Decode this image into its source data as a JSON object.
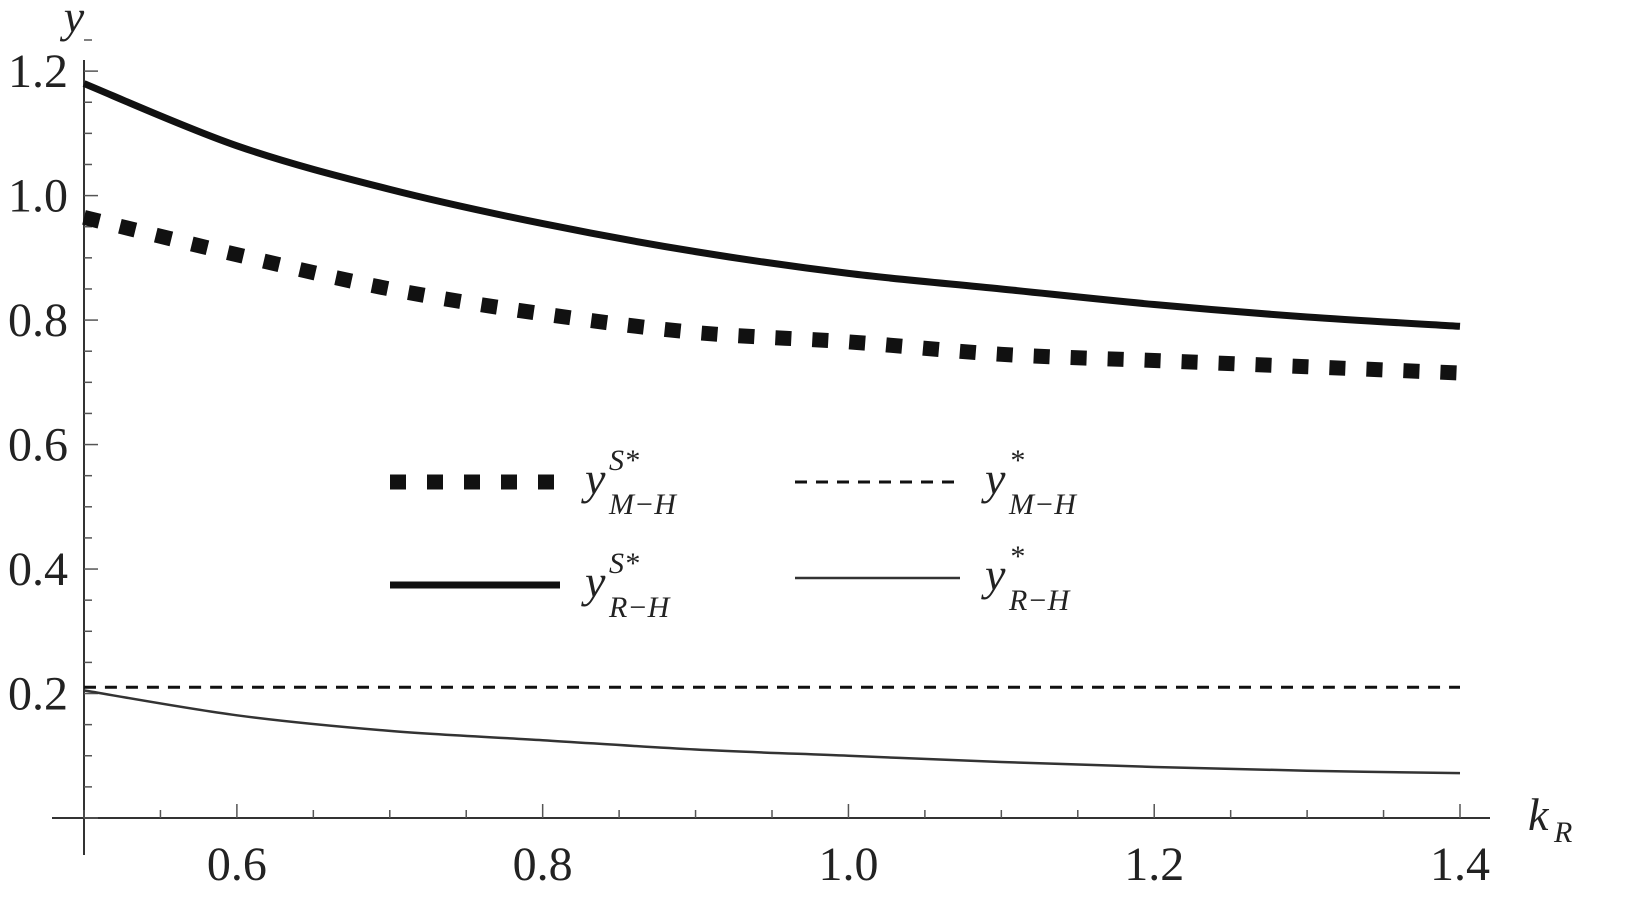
{
  "chart_data": {
    "type": "line",
    "xlabel": "k",
    "xlabel_sub": "R",
    "ylabel": "y",
    "xlim": [
      0.5,
      1.4
    ],
    "ylim": [
      0.0,
      1.25
    ],
    "xticks": [
      "0.6",
      "0.8",
      "1.0",
      "1.2",
      "1.4"
    ],
    "yticks": [
      "0.2",
      "0.4",
      "0.6",
      "0.8",
      "1.0",
      "1.2"
    ],
    "grid": false,
    "legend_position": "center",
    "x": [
      0.5,
      0.6,
      0.7,
      0.8,
      0.9,
      1.0,
      1.1,
      1.2,
      1.3,
      1.4
    ],
    "series": [
      {
        "name": "y_{M-H}^{S*}",
        "label_main": "y",
        "label_sup": "S*",
        "label_sub": "M−H",
        "style": "thick-dotted",
        "values": [
          0.965,
          0.905,
          0.85,
          0.81,
          0.78,
          0.765,
          0.745,
          0.735,
          0.725,
          0.715
        ]
      },
      {
        "name": "y_{M-H}^{*}",
        "label_main": "y",
        "label_sup": "*",
        "label_sub": "M−H",
        "style": "dashed",
        "values": [
          0.21,
          0.21,
          0.21,
          0.21,
          0.21,
          0.21,
          0.21,
          0.21,
          0.21,
          0.21
        ]
      },
      {
        "name": "y_{R-H}^{S*}",
        "label_main": "y",
        "label_sup": "S*",
        "label_sub": "R−H",
        "style": "thick-solid",
        "values": [
          1.18,
          1.08,
          1.01,
          0.955,
          0.91,
          0.875,
          0.85,
          0.825,
          0.805,
          0.79
        ]
      },
      {
        "name": "y_{R-H}^{*}",
        "label_main": "y",
        "label_sup": "*",
        "label_sub": "R−H",
        "style": "thin-solid",
        "values": [
          0.205,
          0.165,
          0.14,
          0.125,
          0.11,
          0.1,
          0.09,
          0.082,
          0.076,
          0.072
        ]
      }
    ]
  }
}
